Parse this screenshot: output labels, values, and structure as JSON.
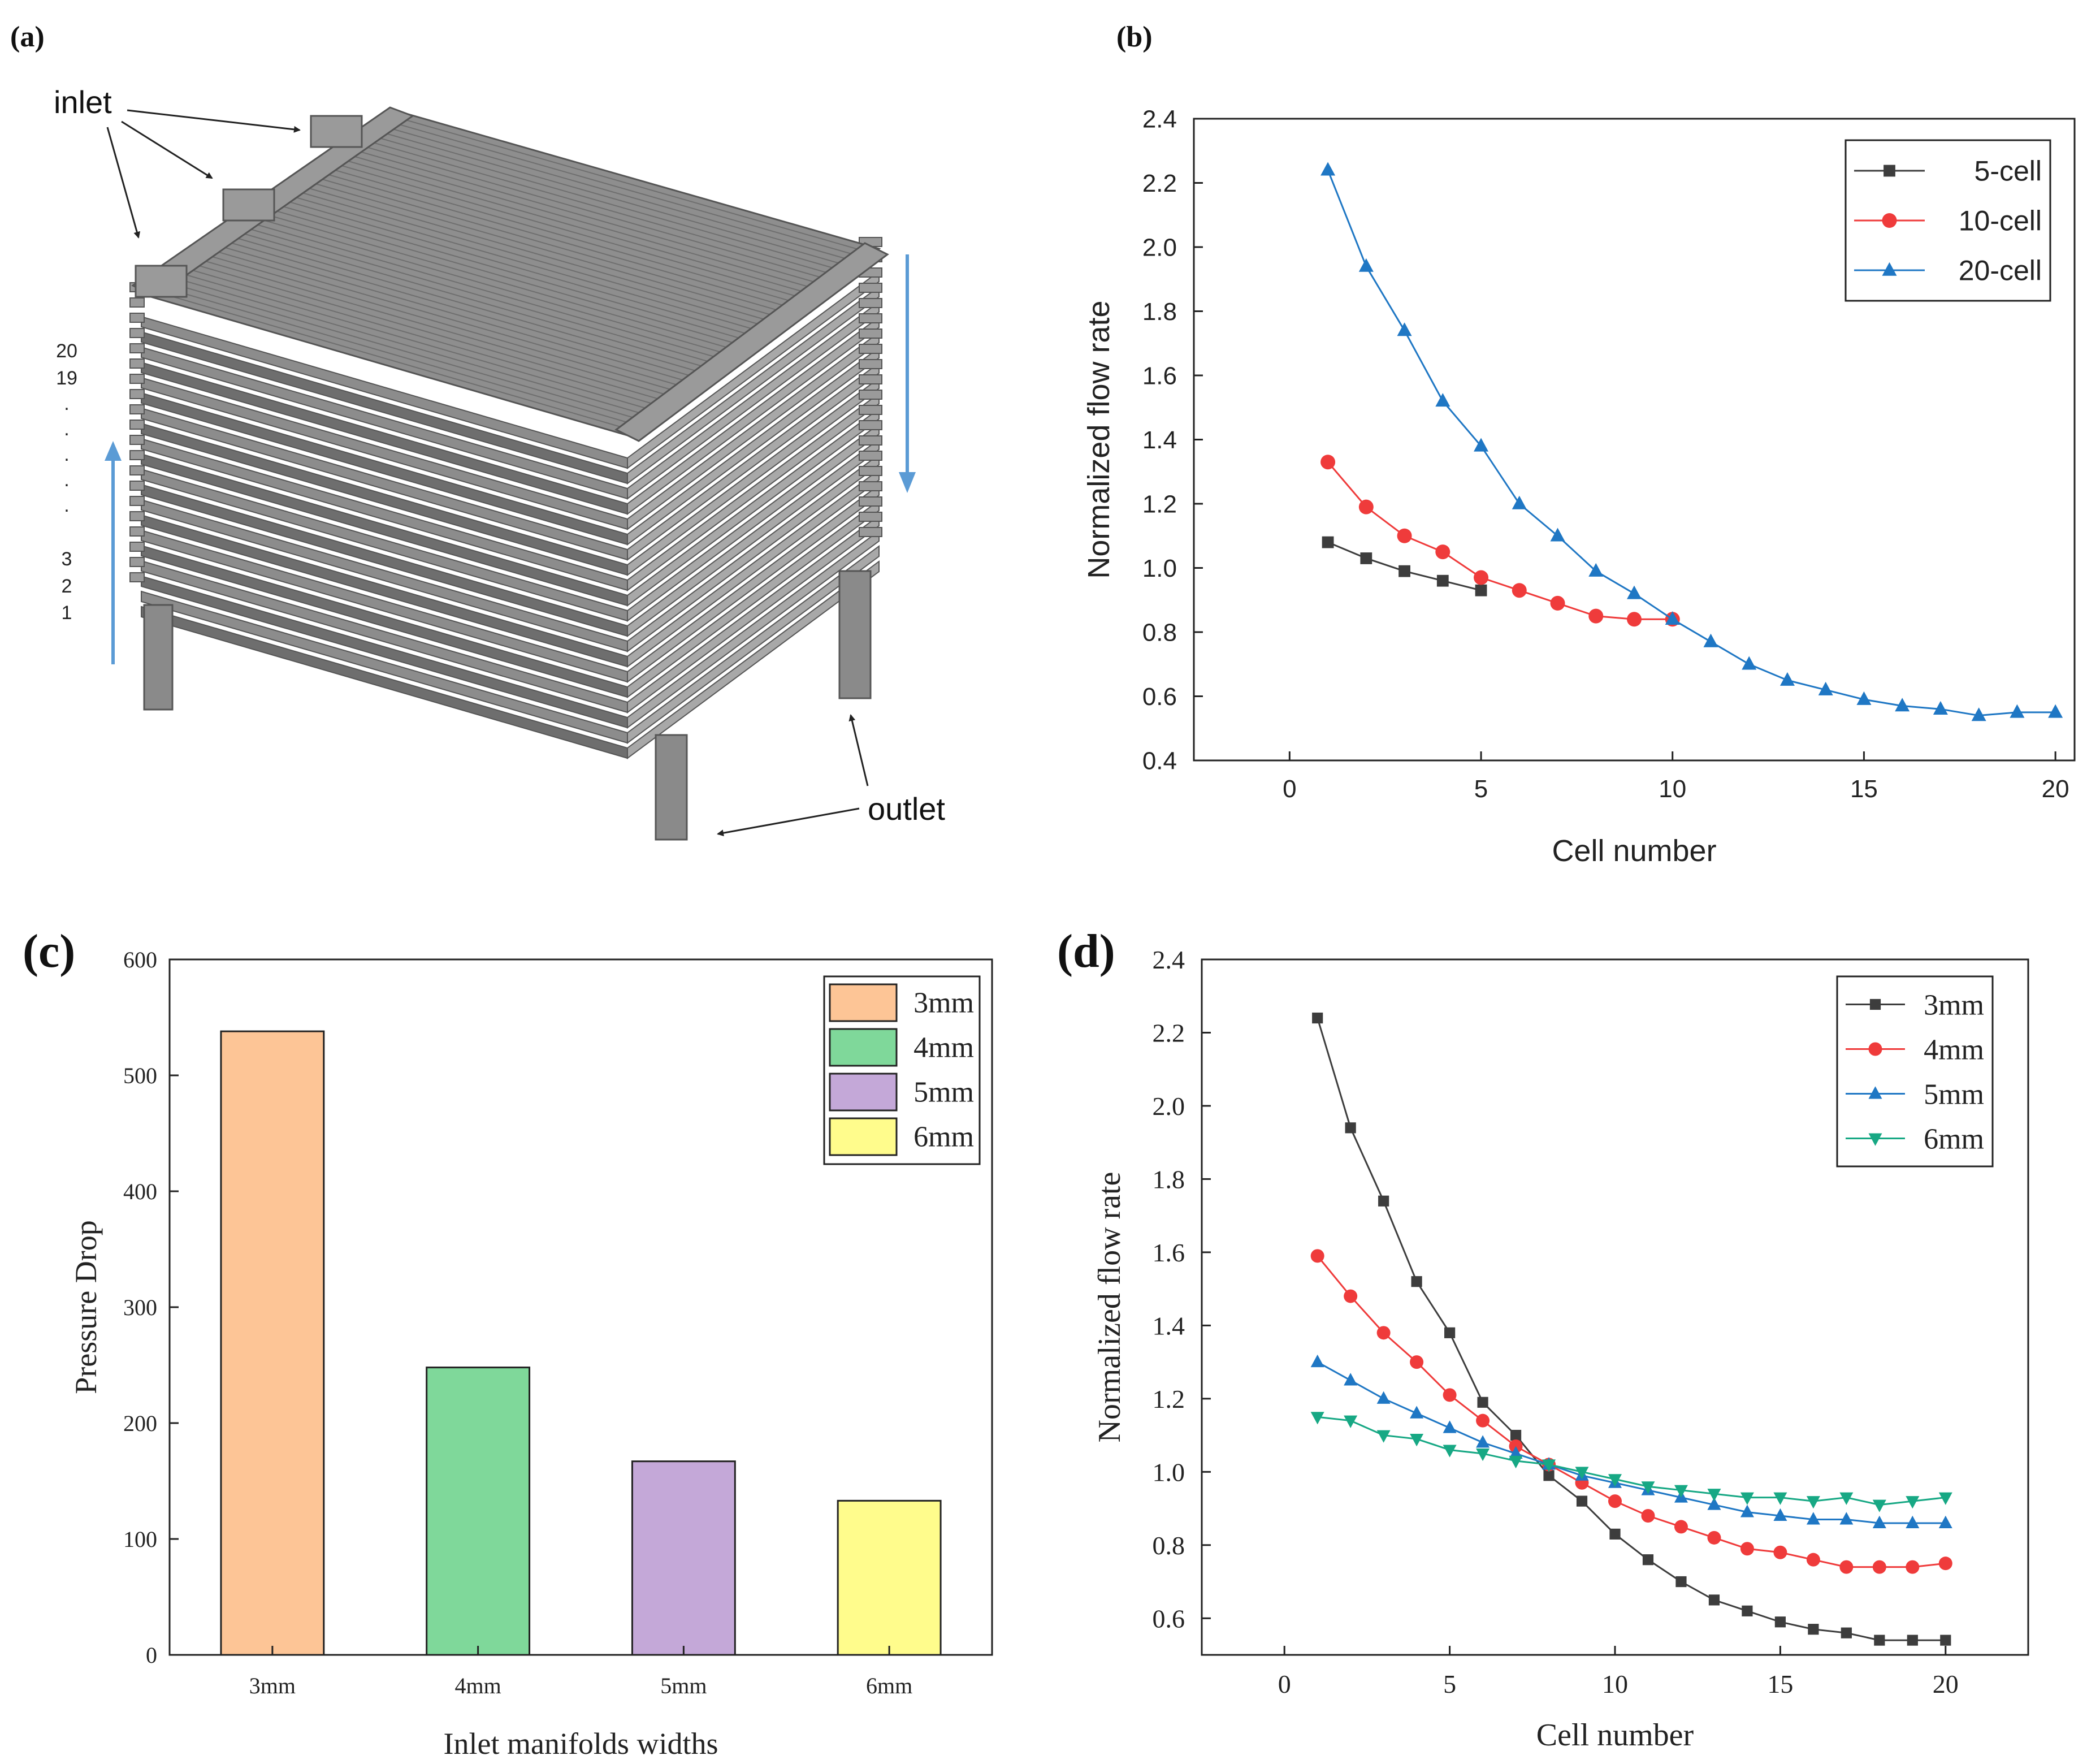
{
  "panel_labels": {
    "a": "(a)",
    "b": "(b)",
    "c": "(c)",
    "d": "(d)"
  },
  "stack_diagram": {
    "inlet_label": "inlet",
    "outlet_label": "outlet",
    "cell_index_labels": [
      "20",
      "19",
      ".",
      ".",
      ".",
      ".",
      ".",
      "3",
      "2",
      "1"
    ],
    "colors": {
      "plate": "#8c8c8c",
      "plate_dark": "#6e6e6e",
      "plate_light": "#a8a8a8",
      "flow_arrow": "#5b9bd5"
    }
  },
  "chart_data": [
    {
      "id": "b",
      "type": "line",
      "title": "",
      "xlabel": "Cell number",
      "ylabel": "Normalized flow rate",
      "xlim": [
        -2.5,
        20.5
      ],
      "ylim": [
        0.4,
        2.4
      ],
      "xticks": [
        0,
        5,
        10,
        15,
        20
      ],
      "yticks": [
        0.4,
        0.6,
        0.8,
        1.0,
        1.2,
        1.4,
        1.6,
        1.8,
        2.0,
        2.2,
        2.4
      ],
      "ytick_labels": [
        "0.4",
        "0.6",
        "0.8",
        "1.0",
        "1.2",
        "1.4",
        "1.6",
        "1.8",
        "2.0",
        "2.2",
        "2.4"
      ],
      "grid": false,
      "legend_position": "top-right",
      "series": [
        {
          "name": "5-cell",
          "color": "#3d3d3d",
          "marker": "square",
          "x": [
            1,
            2,
            3,
            4,
            5
          ],
          "y": [
            1.08,
            1.03,
            0.99,
            0.96,
            0.93
          ]
        },
        {
          "name": "10-cell",
          "color": "#ef3b3b",
          "marker": "circle",
          "x": [
            1,
            2,
            3,
            4,
            5,
            6,
            7,
            8,
            9,
            10
          ],
          "y": [
            1.33,
            1.19,
            1.1,
            1.05,
            0.97,
            0.93,
            0.89,
            0.85,
            0.84,
            0.84
          ]
        },
        {
          "name": "20-cell",
          "color": "#1f77c4",
          "marker": "triangle-up",
          "x": [
            1,
            2,
            3,
            4,
            5,
            6,
            7,
            8,
            9,
            10,
            11,
            12,
            13,
            14,
            15,
            16,
            17,
            18,
            19,
            20
          ],
          "y": [
            2.24,
            1.94,
            1.74,
            1.52,
            1.38,
            1.2,
            1.1,
            0.99,
            0.92,
            0.84,
            0.77,
            0.7,
            0.65,
            0.62,
            0.59,
            0.57,
            0.56,
            0.54,
            0.55,
            0.55
          ]
        }
      ]
    },
    {
      "id": "c",
      "type": "bar",
      "title": "",
      "xlabel": "Inlet manifolds widths",
      "ylabel": "Pressure Drop",
      "categories": [
        "3mm",
        "4mm",
        "5mm",
        "6mm"
      ],
      "values": [
        538,
        248,
        167,
        133
      ],
      "colors": [
        "#fdc596",
        "#7fd89a",
        "#c4a8d8",
        "#fffc8c"
      ],
      "ylim": [
        0,
        600
      ],
      "yticks": [
        0,
        100,
        200,
        300,
        400,
        500,
        600
      ],
      "grid": false,
      "legend_position": "top-right",
      "legend": [
        "3mm",
        "4mm",
        "5mm",
        "6mm"
      ]
    },
    {
      "id": "d",
      "type": "line",
      "title": "",
      "xlabel": "Cell number",
      "ylabel": "Normalized  flow rate",
      "xlim": [
        -2.5,
        22.5
      ],
      "ylim": [
        0.5,
        2.4
      ],
      "xticks": [
        0,
        5,
        10,
        15,
        20
      ],
      "yticks": [
        0.6,
        0.8,
        1.0,
        1.2,
        1.4,
        1.6,
        1.8,
        2.0,
        2.2,
        2.4
      ],
      "ytick_labels": [
        "0.6",
        "0.8",
        "1.0",
        "1.2",
        "1.4",
        "1.6",
        "1.8",
        "2.0",
        "2.2",
        "2.4"
      ],
      "grid": false,
      "legend_position": "top-right",
      "series": [
        {
          "name": "3mm",
          "color": "#3d3d3d",
          "marker": "square",
          "x": [
            1,
            2,
            3,
            4,
            5,
            6,
            7,
            8,
            9,
            10,
            11,
            12,
            13,
            14,
            15,
            16,
            17,
            18,
            19,
            20
          ],
          "y": [
            2.24,
            1.94,
            1.74,
            1.52,
            1.38,
            1.19,
            1.1,
            0.99,
            0.92,
            0.83,
            0.76,
            0.7,
            0.65,
            0.62,
            0.59,
            0.57,
            0.56,
            0.54,
            0.54,
            0.54
          ]
        },
        {
          "name": "4mm",
          "color": "#ef3b3b",
          "marker": "circle",
          "x": [
            1,
            2,
            3,
            4,
            5,
            6,
            7,
            8,
            9,
            10,
            11,
            12,
            13,
            14,
            15,
            16,
            17,
            18,
            19,
            20
          ],
          "y": [
            1.59,
            1.48,
            1.38,
            1.3,
            1.21,
            1.14,
            1.07,
            1.02,
            0.97,
            0.92,
            0.88,
            0.85,
            0.82,
            0.79,
            0.78,
            0.76,
            0.74,
            0.74,
            0.74,
            0.75
          ]
        },
        {
          "name": "5mm",
          "color": "#1f77c4",
          "marker": "triangle-up",
          "x": [
            1,
            2,
            3,
            4,
            5,
            6,
            7,
            8,
            9,
            10,
            11,
            12,
            13,
            14,
            15,
            16,
            17,
            18,
            19,
            20
          ],
          "y": [
            1.3,
            1.25,
            1.2,
            1.16,
            1.12,
            1.08,
            1.05,
            1.02,
            0.99,
            0.97,
            0.95,
            0.93,
            0.91,
            0.89,
            0.88,
            0.87,
            0.87,
            0.86,
            0.86,
            0.86
          ]
        },
        {
          "name": "6mm",
          "color": "#17a884",
          "marker": "triangle-down",
          "x": [
            1,
            2,
            3,
            4,
            5,
            6,
            7,
            8,
            9,
            10,
            11,
            12,
            13,
            14,
            15,
            16,
            17,
            18,
            19,
            20
          ],
          "y": [
            1.15,
            1.14,
            1.1,
            1.09,
            1.06,
            1.05,
            1.03,
            1.02,
            1.0,
            0.98,
            0.96,
            0.95,
            0.94,
            0.93,
            0.93,
            0.92,
            0.93,
            0.91,
            0.92,
            0.93
          ]
        }
      ]
    }
  ]
}
